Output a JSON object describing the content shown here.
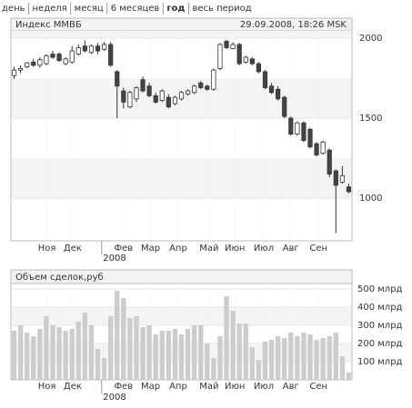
{
  "tabs": [
    "день",
    "неделя",
    "месяц",
    "6 месяцев",
    "год",
    "весь период"
  ],
  "selected_tab": "год",
  "chart_data": [
    {
      "type": "candlestick",
      "title": "Индекс ММВБ",
      "subtitle": "29.09.2008, 18:26 MSK",
      "open": [
        1765,
        1800,
        1820,
        1850,
        1830,
        1840,
        1900,
        1900,
        1840,
        1850,
        1900,
        1950,
        1910,
        1950,
        1930,
        1960,
        1790,
        1670,
        1570,
        1620,
        1740,
        1700,
        1640,
        1610,
        1630,
        1590,
        1620,
        1650,
        1660,
        1720,
        1700,
        1680,
        1810,
        1980,
        1935,
        1960,
        1850,
        1870,
        1840,
        1790,
        1700,
        1680,
        1630,
        1500,
        1400,
        1470,
        1430,
        1340,
        1280,
        1300,
        1170,
        1100,
        1070
      ],
      "high": [
        1820,
        1830,
        1850,
        1870,
        1880,
        1900,
        1920,
        1910,
        1880,
        1950,
        1960,
        1985,
        1960,
        1970,
        1975,
        1975,
        1800,
        1690,
        1670,
        1700,
        1760,
        1720,
        1660,
        1680,
        1650,
        1640,
        1670,
        1680,
        1710,
        1730,
        1710,
        1810,
        1970,
        1990,
        1975,
        1970,
        1890,
        1880,
        1850,
        1800,
        1720,
        1700,
        1640,
        1510,
        1480,
        1480,
        1440,
        1350,
        1360,
        1310,
        1180,
        1200,
        1090
      ],
      "low": [
        1745,
        1780,
        1810,
        1820,
        1815,
        1830,
        1870,
        1850,
        1830,
        1840,
        1890,
        1910,
        1900,
        1900,
        1920,
        1820,
        1500,
        1560,
        1560,
        1600,
        1660,
        1630,
        1590,
        1600,
        1560,
        1580,
        1610,
        1640,
        1650,
        1680,
        1670,
        1670,
        1800,
        1930,
        1930,
        1830,
        1840,
        1830,
        1780,
        1680,
        1650,
        1610,
        1500,
        1390,
        1390,
        1350,
        1310,
        1260,
        1270,
        1130,
        780,
        1090,
        1030
      ],
      "close": [
        1800,
        1810,
        1845,
        1830,
        1865,
        1890,
        1880,
        1860,
        1870,
        1920,
        1940,
        1920,
        1950,
        1920,
        1960,
        1830,
        1700,
        1600,
        1660,
        1690,
        1670,
        1640,
        1600,
        1670,
        1570,
        1630,
        1660,
        1670,
        1700,
        1690,
        1680,
        1800,
        1960,
        1940,
        1960,
        1840,
        1880,
        1840,
        1790,
        1690,
        1660,
        1620,
        1510,
        1400,
        1470,
        1360,
        1320,
        1270,
        1350,
        1150,
        1080,
        1140,
        1040
      ],
      "xlim": [
        -0.5,
        52.5
      ],
      "ylim": [
        733,
        2045
      ],
      "yticks": [
        1000,
        1500,
        2000
      ],
      "xticks": [
        {
          "value": 5.1,
          "label": "Ноя"
        },
        {
          "value": 9.1,
          "label": "Дек"
        },
        {
          "value": 17,
          "label": "Фев"
        },
        {
          "value": 21.2,
          "label": "Мар"
        },
        {
          "value": 25.5,
          "label": "Апр"
        },
        {
          "value": 30.3,
          "label": "Май"
        },
        {
          "value": 34.3,
          "label": "Июн"
        },
        {
          "value": 38.8,
          "label": "Июл"
        },
        {
          "value": 43,
          "label": "Авг"
        },
        {
          "value": 47.3,
          "label": "Сен"
        }
      ],
      "year_label": "2008"
    },
    {
      "type": "bar",
      "title": "Объем сделок,руб",
      "color": "#cccccc",
      "values": [
        270,
        300,
        260,
        240,
        280,
        350,
        300,
        290,
        270,
        280,
        320,
        370,
        300,
        170,
        120,
        350,
        490,
        450,
        340,
        350,
        290,
        300,
        250,
        270,
        270,
        280,
        250,
        280,
        300,
        300,
        200,
        120,
        240,
        460,
        380,
        310,
        310,
        180,
        110,
        210,
        220,
        240,
        230,
        260,
        240,
        260,
        250,
        220,
        230,
        240,
        260,
        130,
        40
      ],
      "xlim": [
        -0.5,
        52.5
      ],
      "ylim": [
        0,
        530
      ],
      "yticks": [
        {
          "value": 100,
          "label": "100 млрд"
        },
        {
          "value": 200,
          "label": "200 млрд"
        },
        {
          "value": 300,
          "label": "300 млрд"
        },
        {
          "value": 400,
          "label": "400 млрд"
        },
        {
          "value": 500,
          "label": "500 млрд"
        }
      ],
      "xticks": [
        {
          "value": 5.1,
          "label": "Ноя"
        },
        {
          "value": 9.1,
          "label": "Дек"
        },
        {
          "value": 17,
          "label": "Фев"
        },
        {
          "value": 21.2,
          "label": "Мар"
        },
        {
          "value": 25.5,
          "label": "Апр"
        },
        {
          "value": 30.3,
          "label": "Май"
        },
        {
          "value": 34.3,
          "label": "Июн"
        },
        {
          "value": 38.8,
          "label": "Июл"
        },
        {
          "value": 43,
          "label": "Авг"
        },
        {
          "value": 47.3,
          "label": "Сен"
        }
      ],
      "year_label": "2008"
    }
  ]
}
